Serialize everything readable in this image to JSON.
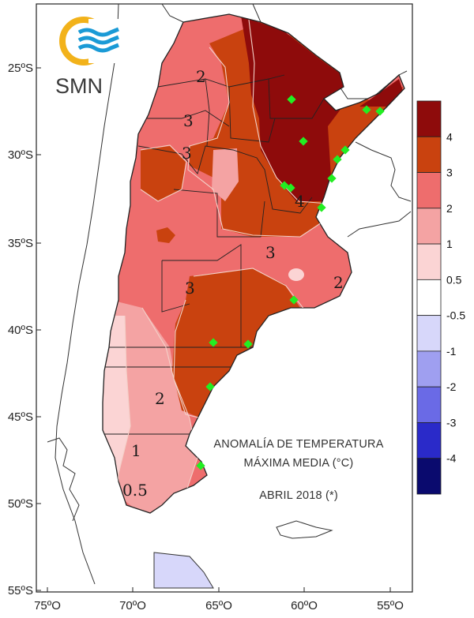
{
  "logo": {
    "text": "SMN",
    "ring_color": "#f2b21a",
    "wave_color": "#1a9ad6"
  },
  "title": {
    "line1": "ANOMALÍA DE TEMPERATURA",
    "line2": "MÁXIMA MEDIA (°C)",
    "period": "ABRIL 2018 (*)"
  },
  "axes": {
    "latitude_labels": [
      "25ºS",
      "30ºS",
      "35ºS",
      "40ºS",
      "45ºS",
      "50ºS",
      "55ºS"
    ],
    "longitude_labels": [
      "75ºO",
      "70ºO",
      "65ºO",
      "60ºO",
      "55ºO"
    ]
  },
  "contour_labels": [
    "2",
    "3",
    "3",
    "4",
    "3",
    "3",
    "2",
    "2",
    "1",
    "0.5"
  ],
  "legend": {
    "labels": [
      "4",
      "3",
      "2",
      "1",
      "0.5",
      "-0.5",
      "-1",
      "-2",
      "-3",
      "-4"
    ],
    "colors": [
      "#8e0b0b",
      "#c9420f",
      "#ee6d6d",
      "#f4a3a3",
      "#fbd4d4",
      "#ffffff",
      "#d7d7fa",
      "#9f9ff0",
      "#6a6ae6",
      "#2a2ac9",
      "#0a0a6e"
    ]
  },
  "stations_color": "#22ee22"
}
